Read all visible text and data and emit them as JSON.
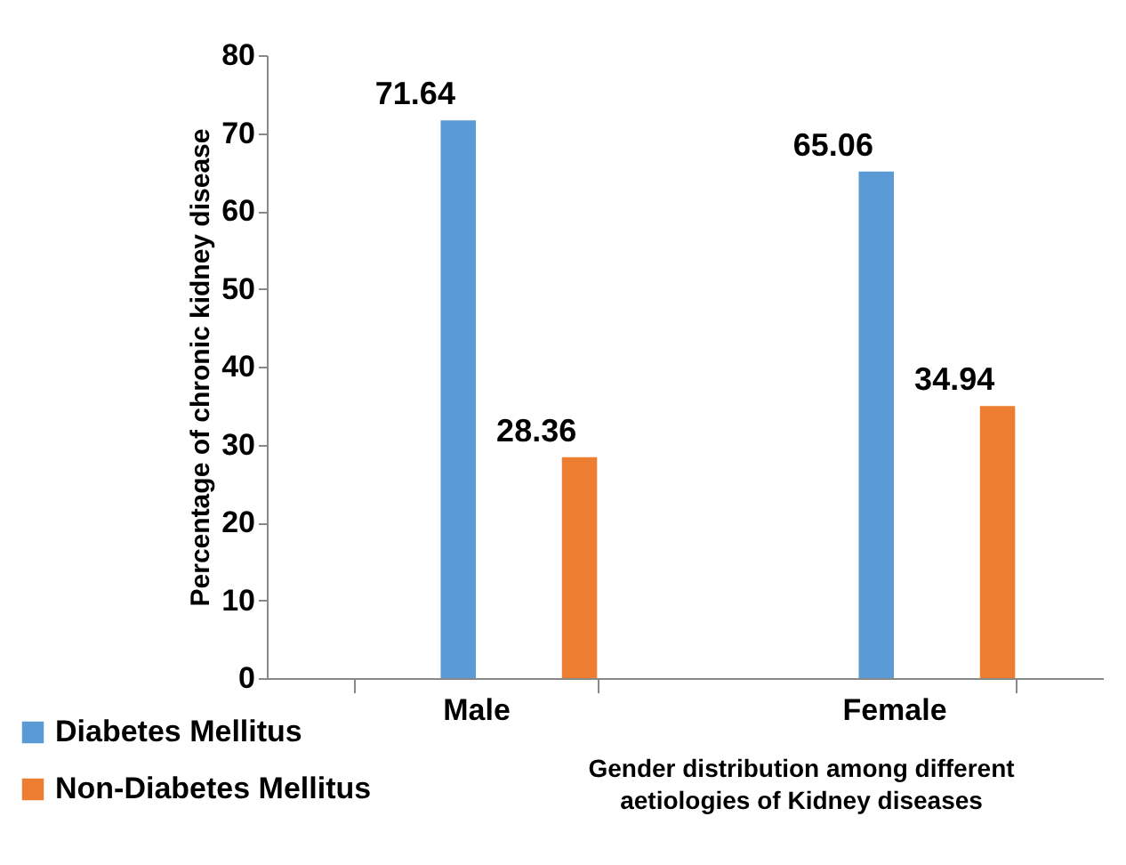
{
  "chart_data": {
    "type": "bar",
    "xlabel": "Gender distribution among different aetiologies of Kidney diseases",
    "ylabel": "Percentage  of chronic kidney disease",
    "categories": [
      "Male",
      "Female"
    ],
    "series": [
      {
        "name": "Diabetes Mellitus",
        "color": "#5b9bd5",
        "values": [
          71.64,
          65.06
        ]
      },
      {
        "name": "Non-Diabetes Mellitus",
        "color": "#ed7d31",
        "values": [
          28.36,
          34.94
        ]
      }
    ],
    "ylim": [
      0,
      80
    ],
    "yticks": [
      0,
      10,
      20,
      30,
      40,
      50,
      60,
      70,
      80
    ],
    "data_labels": true,
    "legend": "bottom left"
  }
}
